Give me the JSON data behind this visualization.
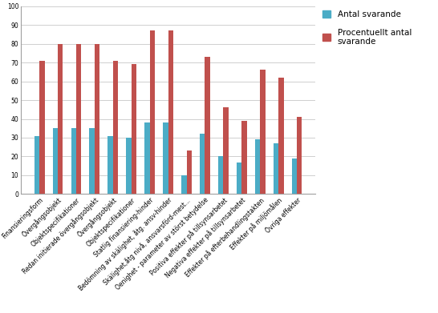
{
  "categories": [
    "Finansieringsform",
    "Övergångsobjekt",
    "Objektspecifikationer",
    "Redan initierade övergångsobjekt",
    "Övergångsobjekt",
    "Objektspecifikationer",
    "Statlig finansiering-hinder",
    "Bedömning av skälighet, åtg. ansv-hinder",
    "Skälighet,åtg nivå, ansvarsförd-mest...",
    "Oenighet - parameter av störst betydelse",
    "Positiva effekter på tillsynsarbetet",
    "Negativa effekter på tillsynsarbetet",
    "Effekter på efterbehandlingstakten",
    "Effekter på miljömålen",
    "Övriga effekter"
  ],
  "antal_svarande": [
    31,
    35,
    35,
    35,
    31,
    30,
    38,
    38,
    10,
    32,
    20,
    17,
    29,
    27,
    19
  ],
  "procentuellt_antal": [
    71,
    80,
    80,
    80,
    71,
    69,
    87,
    87,
    23,
    73,
    46,
    39,
    66,
    62,
    41
  ],
  "color_antal": "#4bacc6",
  "color_procentuellt": "#c0504d",
  "legend_antal": "Antal svarande",
  "legend_procentuellt": "Procentuellt antal\nsvarande",
  "ylim": [
    0,
    100
  ],
  "yticks": [
    0,
    10,
    20,
    30,
    40,
    50,
    60,
    70,
    80,
    90,
    100
  ],
  "bar_width": 0.28,
  "figsize": [
    5.46,
    3.91
  ],
  "dpi": 100,
  "background_color": "#ffffff",
  "grid_color": "#c8c8c8",
  "tick_fontsize": 5.5,
  "legend_fontsize": 7.5,
  "ylabel_fontsize": 7
}
